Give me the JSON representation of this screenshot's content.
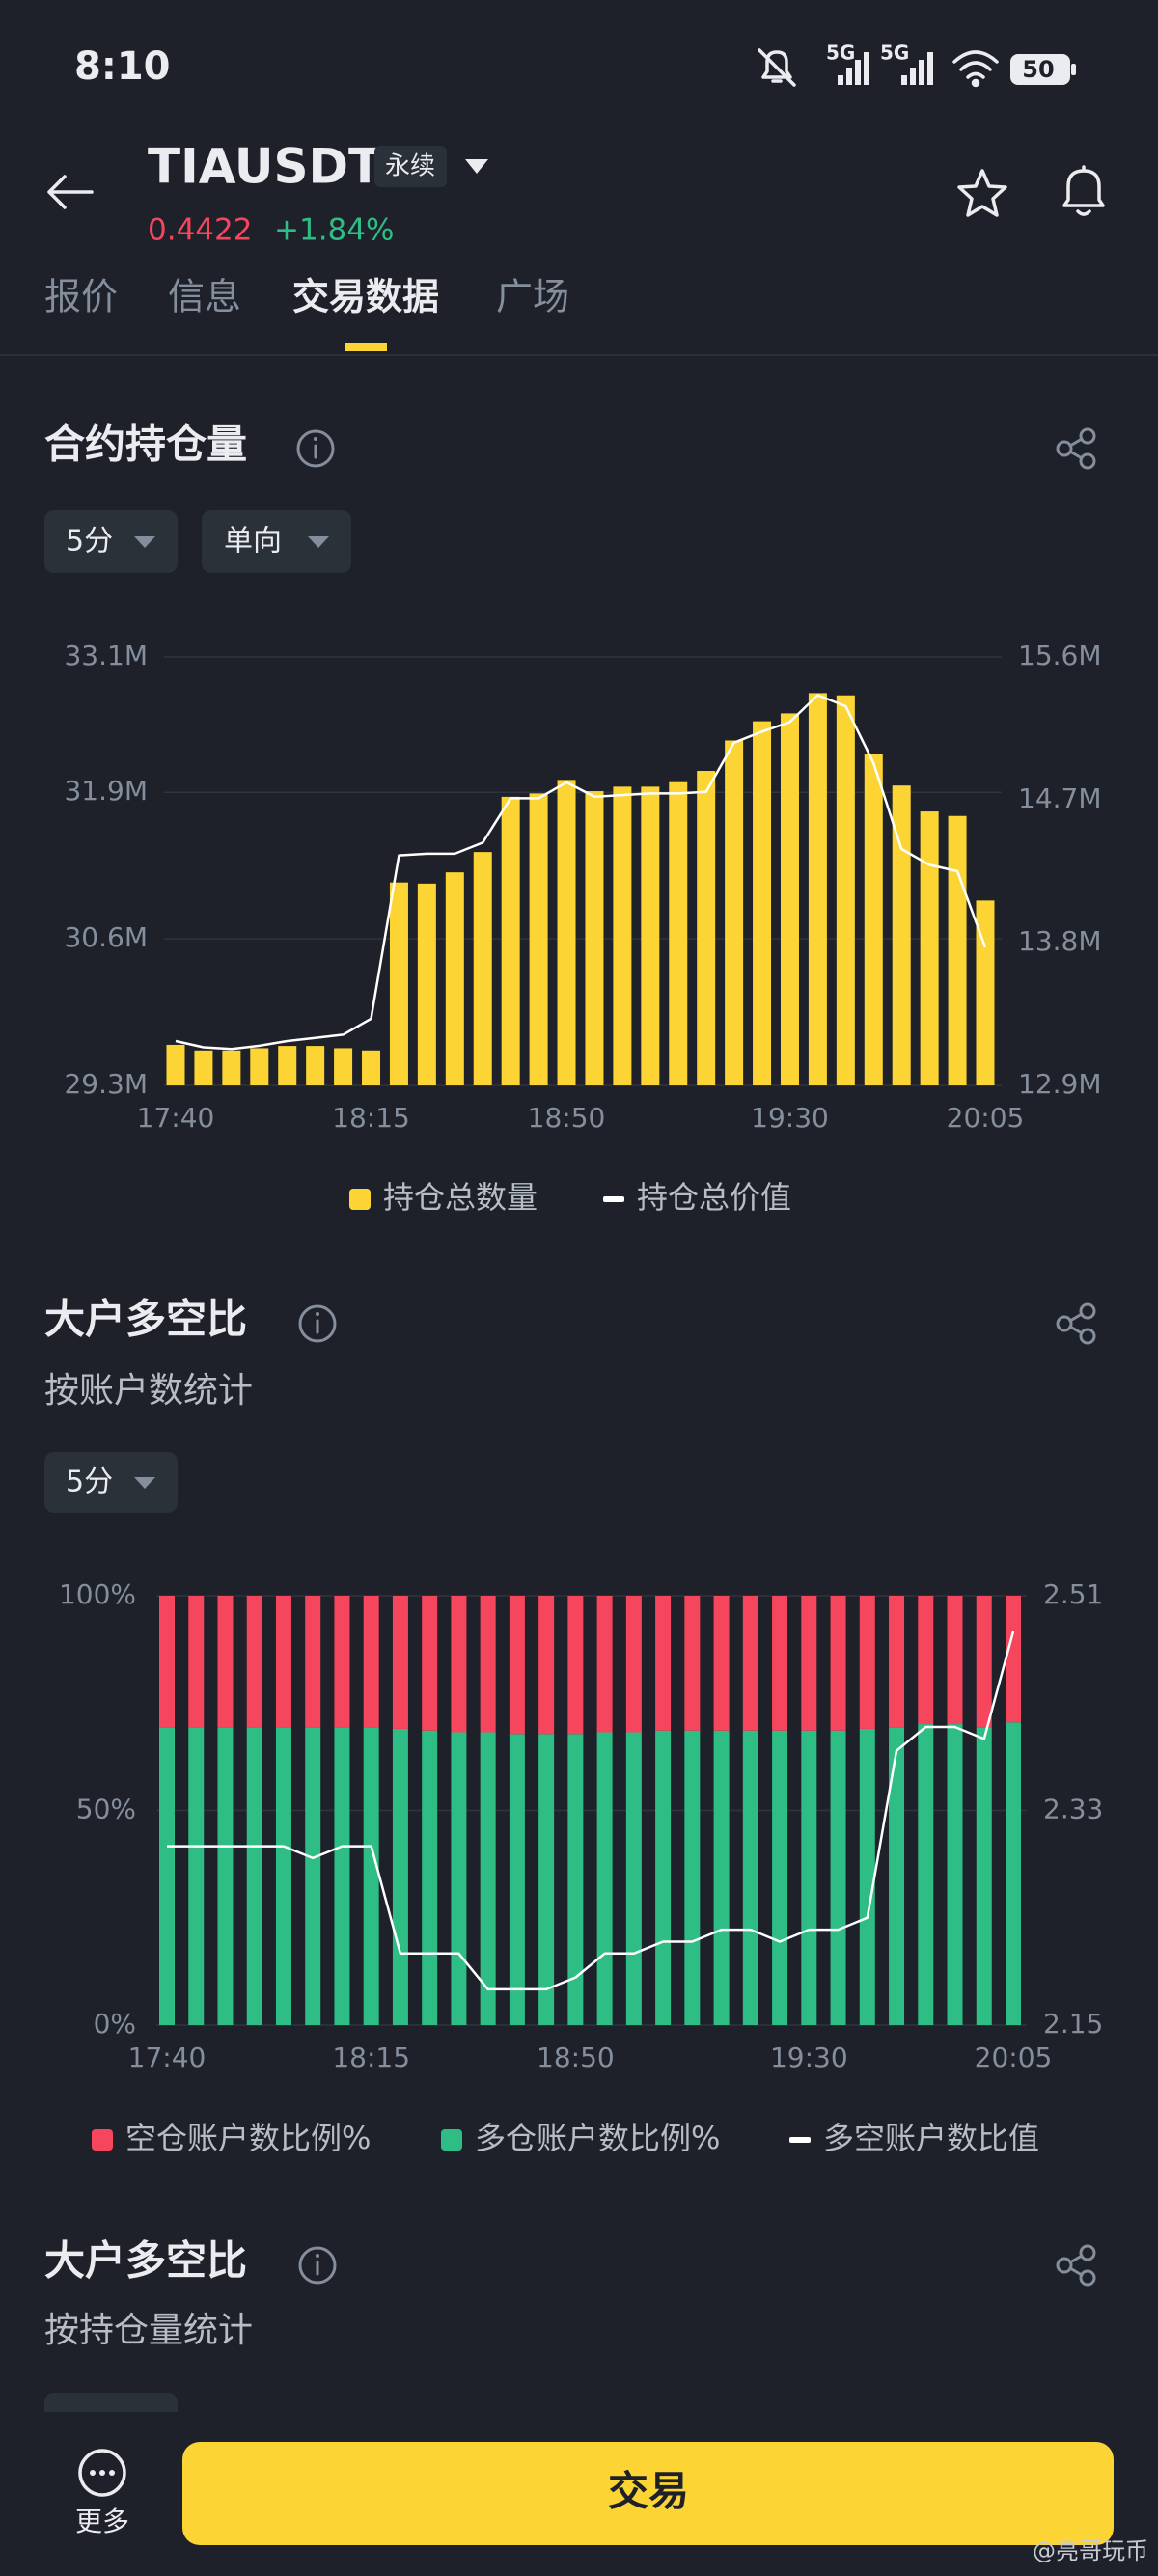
{
  "status_bar": {
    "time": "8:10",
    "signals": [
      "5G",
      "5G"
    ],
    "battery": "50"
  },
  "header": {
    "symbol": "TIAUSDT",
    "badge": "永续",
    "price": "0.4422",
    "change": "+1.84%"
  },
  "tabs": {
    "items": [
      "报价",
      "信息",
      "交易数据",
      "广场"
    ],
    "active": 2
  },
  "sections": [
    {
      "title": "合约持仓量",
      "selectors": [
        "5分",
        "单向"
      ],
      "chart_data": {
        "type": "bar-line",
        "categories": [
          "17:40",
          null,
          null,
          null,
          null,
          null,
          null,
          "18:15",
          null,
          null,
          null,
          null,
          null,
          null,
          "18:50",
          null,
          null,
          null,
          null,
          null,
          null,
          null,
          "19:30",
          null,
          null,
          null,
          null,
          null,
          null,
          "20:05"
        ],
        "series": [
          {
            "name": "持仓总数量",
            "type": "bar",
            "color": "#fcd535",
            "values": [
              29660000,
              29610000,
              29610000,
              29630000,
              29650000,
              29650000,
              29630000,
              29610000,
              31100000,
              31090000,
              31190000,
              31370000,
              31860000,
              31890000,
              32010000,
              31910000,
              31950000,
              31950000,
              31990000,
              32090000,
              32360000,
              32530000,
              32600000,
              32780000,
              32760000,
              32240000,
              31960000,
              31730000,
              31690000,
              30940000
            ]
          },
          {
            "name": "持仓总价值",
            "type": "line",
            "axis": "y2",
            "color": "#ffffff",
            "values": [
              13180000,
              13140000,
              13130000,
              13150000,
              13180000,
              13200000,
              13220000,
              13320000,
              14350000,
              14360000,
              14360000,
              14430000,
              14710000,
              14710000,
              14810000,
              14720000,
              14730000,
              14740000,
              14740000,
              14750000,
              15060000,
              15130000,
              15190000,
              15360000,
              15290000,
              14930000,
              14390000,
              14290000,
              14250000,
              13770000
            ]
          }
        ],
        "ylim": [
          29300000,
          33100000
        ],
        "yticks": [
          {
            "value": 29300000,
            "label": "29.3M"
          },
          {
            "value": 30600000,
            "label": "30.6M"
          },
          {
            "value": 31900000,
            "label": "31.9M"
          },
          {
            "value": 33100000,
            "label": "33.1M"
          }
        ],
        "y2lim": [
          12900000,
          15600000
        ],
        "y2ticks": [
          {
            "value": 12900000,
            "label": "12.9M"
          },
          {
            "value": 13800000,
            "label": "13.8M"
          },
          {
            "value": 14700000,
            "label": "14.7M"
          },
          {
            "value": 15600000,
            "label": "15.6M"
          }
        ],
        "grid": true
      }
    },
    {
      "title": "大户多空比",
      "subtitle": "按账户数统计",
      "selectors": [
        "5分"
      ],
      "chart_data": {
        "type": "stacked-bar-line",
        "categories": [
          "17:40",
          null,
          null,
          null,
          null,
          null,
          null,
          "18:15",
          null,
          null,
          null,
          null,
          null,
          null,
          "18:50",
          null,
          null,
          null,
          null,
          null,
          null,
          null,
          "19:30",
          null,
          null,
          null,
          null,
          null,
          null,
          "20:05"
        ],
        "series": [
          {
            "name": "空仓账户数比例%",
            "type": "bar",
            "color": "#f6465d",
            "values": [
              30.7,
              30.7,
              30.7,
              30.7,
              30.7,
              30.7,
              30.7,
              30.7,
              31.0,
              31.4,
              31.8,
              31.8,
              32.2,
              32.2,
              32.2,
              31.8,
              31.8,
              31.4,
              31.4,
              31.4,
              31.4,
              31.4,
              31.4,
              31.4,
              31.0,
              30.7,
              29.9,
              29.9,
              30.7,
              29.5
            ]
          },
          {
            "name": "多仓账户数比例%",
            "type": "bar",
            "color": "#2ebd85",
            "values": [
              69.3,
              69.3,
              69.3,
              69.3,
              69.3,
              69.3,
              69.3,
              69.3,
              69.0,
              68.6,
              68.2,
              68.2,
              67.8,
              67.8,
              67.8,
              68.2,
              68.2,
              68.6,
              68.6,
              68.6,
              68.6,
              68.6,
              68.6,
              68.6,
              69.0,
              69.3,
              70.1,
              70.1,
              69.3,
              70.5
            ]
          },
          {
            "name": "多空账户数比值",
            "type": "line",
            "axis": "y2",
            "color": "#ffffff",
            "values": [
              2.3,
              2.3,
              2.3,
              2.3,
              2.3,
              2.29,
              2.3,
              2.3,
              2.21,
              2.21,
              2.21,
              2.18,
              2.18,
              2.18,
              2.19,
              2.21,
              2.21,
              2.22,
              2.22,
              2.23,
              2.23,
              2.22,
              2.23,
              2.23,
              2.24,
              2.38,
              2.4,
              2.4,
              2.39,
              2.48
            ]
          }
        ],
        "ylim": [
          0,
          100
        ],
        "yticks": [
          {
            "value": 0,
            "label": "0%"
          },
          {
            "value": 50,
            "label": "50%"
          },
          {
            "value": 100,
            "label": "100%"
          }
        ],
        "y2lim": [
          2.15,
          2.51
        ],
        "y2ticks": [
          2.15,
          2.33,
          2.51
        ],
        "grid": true
      }
    },
    {
      "title": "大户多空比",
      "subtitle": "按持仓量统计"
    }
  ],
  "bottom_bar": {
    "more": "更多",
    "button": "交易"
  },
  "watermark": "@亮哥玩币"
}
